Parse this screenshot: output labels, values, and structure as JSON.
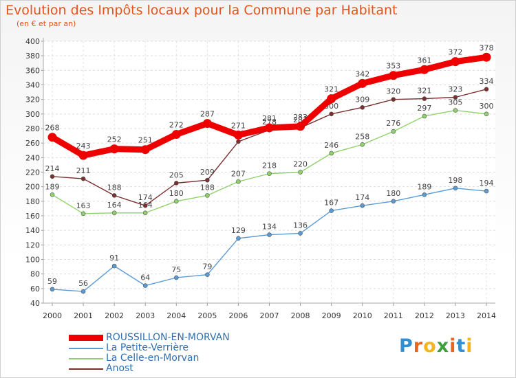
{
  "header": {
    "title": "Evolution des Impôts locaux pour la Commune par Habitant",
    "subtitle": "(en € et par an)"
  },
  "logo": {
    "letters": [
      "P",
      "r",
      "o",
      "x",
      "i",
      "t",
      "i"
    ],
    "colors": [
      "#2f8fd2",
      "#e8661e",
      "#f2b51a",
      "#3c9e3c",
      "#e8661e",
      "#2f8fd2",
      "#f2b51a"
    ]
  },
  "chart_data": {
    "type": "line",
    "title": "Evolution des Impôts locaux pour la Commune par Habitant",
    "subtitle": "(en € et par an)",
    "xlabel": "",
    "ylabel": "",
    "x": [
      "2000",
      "2001",
      "2002",
      "2003",
      "2004",
      "2005",
      "2006",
      "2007",
      "2008",
      "2009",
      "2010",
      "2011",
      "2012",
      "2013",
      "2014"
    ],
    "ylim": [
      40,
      400
    ],
    "yticks": [
      40,
      60,
      80,
      100,
      120,
      140,
      160,
      180,
      200,
      220,
      240,
      260,
      280,
      300,
      320,
      340,
      360,
      380,
      400
    ],
    "grid": true,
    "legend_position": "bottom-left",
    "series": [
      {
        "name": "ROUSSILLON-EN-MORVAN",
        "color": "#ee0000",
        "values": [
          268,
          243,
          252,
          251,
          272,
          287,
          271,
          281,
          283,
          321,
          342,
          353,
          361,
          372,
          378
        ]
      },
      {
        "name": "La Petite-Verrière",
        "color": "#5b9bd5",
        "values": [
          59,
          56,
          91,
          64,
          75,
          79,
          129,
          134,
          136,
          167,
          174,
          180,
          189,
          198,
          194
        ]
      },
      {
        "name": "La Celle-en-Morvan",
        "color": "#8fd16a",
        "values": [
          189,
          163,
          164,
          164,
          180,
          188,
          207,
          218,
          220,
          246,
          258,
          276,
          297,
          305,
          300
        ]
      },
      {
        "name": "Anost",
        "color": "#7a2e2e",
        "values": [
          214,
          211,
          188,
          174,
          205,
          209,
          262,
          278,
          281,
          300,
          309,
          320,
          321,
          323,
          334
        ]
      }
    ]
  }
}
